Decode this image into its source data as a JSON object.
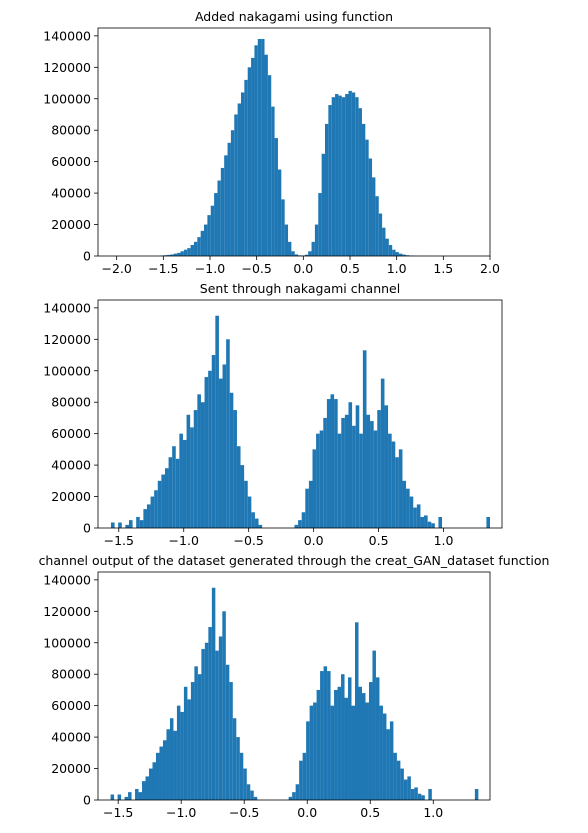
{
  "chart_data": [
    {
      "type": "bar",
      "title": "Added nakagami using function",
      "xlabel": "",
      "ylabel": "",
      "xlim": [
        -2.2,
        2.0
      ],
      "ylim": [
        0,
        145000
      ],
      "xticks": [
        -2.0,
        -1.5,
        -1.0,
        -0.5,
        0.0,
        0.5,
        1.0,
        1.5,
        2.0
      ],
      "xtick_labels": [
        "−2.0",
        "−1.5",
        "−1.0",
        "−0.5",
        "0.0",
        "0.5",
        "1.0",
        "1.5",
        "2.0"
      ],
      "yticks": [
        0,
        20000,
        40000,
        60000,
        80000,
        100000,
        120000,
        140000
      ],
      "ytick_labels": [
        "0",
        "20000",
        "40000",
        "60000",
        "80000",
        "100000",
        "120000",
        "140000"
      ],
      "bins": {
        "start": -2.0,
        "width": 0.036
      },
      "values": [
        0,
        0,
        0,
        0,
        0,
        0,
        0,
        0,
        0,
        0,
        0,
        0,
        0,
        300,
        500,
        700,
        1000,
        1500,
        2000,
        3000,
        4000,
        5000,
        7000,
        9000,
        12000,
        16000,
        20000,
        26000,
        32000,
        40000,
        48000,
        56000,
        64000,
        72000,
        80000,
        90000,
        97000,
        104000,
        112000,
        120000,
        126000,
        134000,
        138000,
        138000,
        128000,
        115000,
        95000,
        75000,
        55000,
        36000,
        20000,
        9000,
        3000,
        1000,
        400,
        300,
        800,
        3000,
        9000,
        20000,
        40000,
        65000,
        84000,
        96000,
        101000,
        103000,
        102000,
        101000,
        103000,
        105000,
        104000,
        101000,
        94000,
        84000,
        74000,
        62000,
        50000,
        38000,
        27000,
        18000,
        11000,
        7000,
        4000,
        2500,
        1500,
        900,
        500,
        300,
        150,
        80,
        40,
        20,
        10,
        0,
        0,
        0,
        0,
        0,
        0,
        0
      ]
    },
    {
      "type": "bar",
      "title": "Sent through nakagami channel",
      "xlabel": "",
      "ylabel": "",
      "xlim": [
        -1.66,
        1.45
      ],
      "ylim": [
        0,
        145000
      ],
      "xticks": [
        -1.5,
        -1.0,
        -0.5,
        0.0,
        0.5,
        1.0
      ],
      "xtick_labels": [
        "−1.5",
        "−1.0",
        "−0.5",
        "0.0",
        "0.5",
        "1.0"
      ],
      "yticks": [
        0,
        20000,
        40000,
        60000,
        80000,
        100000,
        120000,
        140000
      ],
      "ytick_labels": [
        "0",
        "20000",
        "40000",
        "60000",
        "80000",
        "100000",
        "120000",
        "140000"
      ],
      "bins": {
        "start": -1.56,
        "width": 0.0277
      },
      "values": [
        3500,
        0,
        3500,
        0,
        2000,
        5000,
        0,
        7000,
        5000,
        12000,
        15000,
        20000,
        24000,
        30000,
        34000,
        38000,
        45000,
        52000,
        44000,
        60000,
        56000,
        72000,
        64000,
        75000,
        85000,
        80000,
        96000,
        100000,
        110000,
        135000,
        95000,
        104000,
        120000,
        86000,
        75000,
        52000,
        40000,
        30000,
        20000,
        10000,
        6000,
        2000,
        0,
        0,
        0,
        0,
        0,
        0,
        0,
        0,
        0,
        2000,
        5000,
        10000,
        25000,
        30000,
        50000,
        60000,
        62000,
        70000,
        82000,
        85000,
        82000,
        60000,
        70000,
        72000,
        80000,
        65000,
        78000,
        60000,
        113000,
        72000,
        68000,
        62000,
        75000,
        95000,
        78000,
        60000,
        55000,
        45000,
        50000,
        30000,
        25000,
        20000,
        13000,
        15000,
        7000,
        8000,
        4000,
        3000,
        0,
        7000
      ],
      "extra_bars": [
        {
          "x": 1.33,
          "value": 7000
        }
      ]
    },
    {
      "type": "bar",
      "title": "channel output of the dataset generated through the creat_GAN_dataset function",
      "xlabel": "",
      "ylabel": "",
      "xlim": [
        -1.66,
        1.45
      ],
      "ylim": [
        0,
        145000
      ],
      "xticks": [
        -1.5,
        -1.0,
        -0.5,
        0.0,
        0.5,
        1.0
      ],
      "xtick_labels": [
        "−1.5",
        "−1.0",
        "−0.5",
        "0.0",
        "0.5",
        "1.0"
      ],
      "yticks": [
        0,
        20000,
        40000,
        60000,
        80000,
        100000,
        120000,
        140000
      ],
      "ytick_labels": [
        "0",
        "20000",
        "40000",
        "60000",
        "80000",
        "100000",
        "120000",
        "140000"
      ],
      "bins": {
        "start": -1.56,
        "width": 0.0277
      },
      "values": [
        3500,
        0,
        3500,
        0,
        2000,
        5000,
        0,
        7000,
        5000,
        12000,
        15000,
        20000,
        24000,
        30000,
        34000,
        38000,
        45000,
        52000,
        44000,
        60000,
        56000,
        72000,
        64000,
        75000,
        85000,
        80000,
        96000,
        100000,
        110000,
        135000,
        95000,
        104000,
        120000,
        86000,
        75000,
        52000,
        40000,
        30000,
        20000,
        10000,
        6000,
        2000,
        0,
        0,
        0,
        0,
        0,
        0,
        0,
        0,
        0,
        2000,
        5000,
        10000,
        25000,
        30000,
        50000,
        60000,
        62000,
        70000,
        82000,
        85000,
        82000,
        60000,
        70000,
        72000,
        80000,
        65000,
        78000,
        60000,
        113000,
        72000,
        68000,
        62000,
        75000,
        95000,
        78000,
        60000,
        55000,
        45000,
        50000,
        30000,
        25000,
        20000,
        13000,
        15000,
        7000,
        8000,
        4000,
        3000,
        0,
        7000
      ],
      "extra_bars": [
        {
          "x": 1.33,
          "value": 7000
        }
      ]
    }
  ],
  "colors": {
    "bar": "#1f77b4",
    "axes": "#000000",
    "text": "#000000"
  }
}
